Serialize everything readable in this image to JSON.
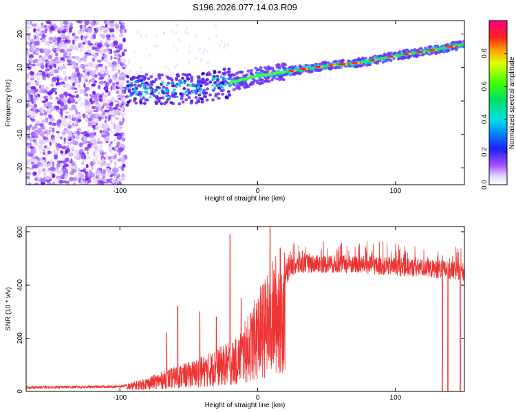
{
  "title": "S196.2026.077.14.03.R09",
  "charts": {
    "spectrogram": {
      "type": "heatmap",
      "xlabel": "Height of straight line (km)",
      "ylabel": "Frequency (Hz)",
      "xlim": [
        -168,
        150
      ],
      "ylim": [
        -25,
        24
      ],
      "xticks": [
        -100,
        0,
        100
      ],
      "yticks": [
        -20,
        -10,
        0,
        10,
        20
      ],
      "xtick_labels": [
        "-100",
        "0",
        "100"
      ],
      "ytick_labels": [
        "-20",
        "-10",
        "0",
        "10",
        "20"
      ],
      "ridge": {
        "x": [
          -95,
          -80,
          -60,
          -40,
          -20,
          0,
          25,
          50,
          75,
          100,
          125,
          150
        ],
        "y": [
          3.0,
          3.5,
          3.5,
          4.0,
          5.5,
          7.5,
          9.0,
          10.5,
          11.5,
          13.5,
          15.0,
          17.0
        ]
      },
      "noise_region_x": [
        -168,
        -96
      ]
    },
    "colorbar": {
      "label": "Normalized spectral amplitude",
      "ticks": [
        0.0,
        0.2,
        0.4,
        0.6,
        0.8
      ],
      "tick_labels": [
        "0.0",
        "0.2",
        "0.4",
        "0.6",
        "0.8"
      ],
      "range": [
        0,
        1
      ]
    },
    "snr": {
      "type": "line",
      "xlabel": "Height of straight line (km)",
      "ylabel": "SNR (10 * v/v)",
      "xlim": [
        -168,
        150
      ],
      "ylim": [
        0,
        620
      ],
      "xticks": [
        -100,
        0,
        100
      ],
      "yticks": [
        0,
        200,
        400,
        600
      ],
      "xtick_labels": [
        "-100",
        "0",
        "100"
      ],
      "ytick_labels": [
        "0",
        "200",
        "400",
        "600"
      ],
      "series_color": "#ee3333",
      "profile": {
        "x": [
          -168,
          -100,
          -92,
          -80,
          -60,
          -45,
          -35,
          -25,
          -15,
          -5,
          0,
          5,
          8,
          12,
          18,
          25,
          35,
          50,
          100,
          130,
          150
        ],
        "y": [
          15,
          18,
          25,
          40,
          70,
          90,
          110,
          130,
          150,
          230,
          280,
          320,
          330,
          380,
          420,
          470,
          480,
          480,
          470,
          460,
          450
        ]
      },
      "spikes": [
        {
          "x": -20,
          "y": 590
        },
        {
          "x": 9,
          "y": 620
        },
        {
          "x": -66,
          "y": 220
        },
        {
          "x": -58,
          "y": 320
        },
        {
          "x": -42,
          "y": 300
        },
        {
          "x": -30,
          "y": 280
        },
        {
          "x": -12,
          "y": 350
        }
      ],
      "dropouts_x": [
        134,
        138,
        147
      ]
    }
  }
}
